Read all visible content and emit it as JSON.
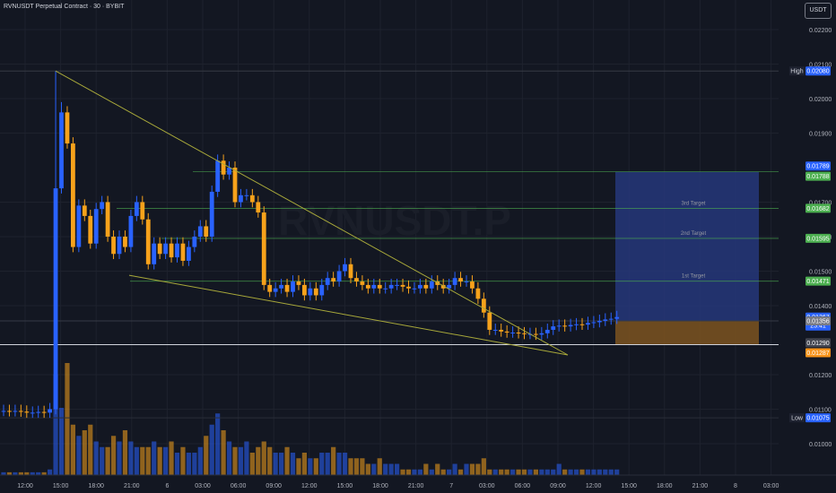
{
  "header": {
    "symbol_title": "RVNUSDT Perpetual Contract · 30 · BYBIT",
    "currency_button": "USDT"
  },
  "watermark": "RVNUSDT.P",
  "price_axis": {
    "ticks": [
      "0.02200",
      "0.02100",
      "0.02000",
      "0.01900",
      "0.01700",
      "0.01600",
      "0.01500",
      "0.01400",
      "0.01200",
      "0.01100",
      "0.01000"
    ],
    "badges": [
      {
        "label": "High",
        "value": "0.02080",
        "color": "#2962ff"
      },
      {
        "value": "0.01789",
        "color": "#2962ff"
      },
      {
        "value": "0.01788",
        "color": "#4caf50"
      },
      {
        "value": "0.01682",
        "color": "#4caf50"
      },
      {
        "value": "0.01595",
        "color": "#4caf50"
      },
      {
        "value": "0.01471",
        "color": "#4caf50"
      },
      {
        "value": "0.01367",
        "sub": "23:41",
        "color": "#2962ff"
      },
      {
        "value": "0.01356",
        "color": "#787b86"
      },
      {
        "value": "0.01290",
        "color": "#434651"
      },
      {
        "value": "0.01287",
        "color": "#f7931a"
      },
      {
        "label": "Low",
        "value": "0.01075",
        "color": "#2962ff"
      }
    ]
  },
  "time_axis": {
    "ticks": [
      "12:00",
      "15:00",
      "18:00",
      "21:00",
      "6",
      "03:00",
      "06:00",
      "09:00",
      "12:00",
      "15:00",
      "18:00",
      "21:00",
      "7",
      "03:00",
      "06:00",
      "09:00",
      "12:00",
      "15:00",
      "18:00",
      "21:00",
      "8",
      "03:00"
    ]
  },
  "targets": [
    "3rd Target",
    "2nd Target",
    "1st Target"
  ],
  "colors": {
    "up": "#2962ff",
    "down": "#f7a21b",
    "target_line": "#4caf50",
    "wedge": "#a8a83a",
    "profit_zone": "#26377a",
    "loss_zone": "#7d5420",
    "background": "#131722",
    "grid": "#1e222d",
    "axis_text": "#b2b5be"
  },
  "chart_data": {
    "type": "candlestick",
    "symbol": "RVNUSDT",
    "interval": "30",
    "exchange": "BYBIT",
    "session_high": 0.0208,
    "session_low": 0.01075,
    "last_price": 0.01367,
    "countdown": "23:41",
    "levels": {
      "target_3": 0.01682,
      "target_2": 0.01595,
      "target_1": 0.01471,
      "take_profit": 0.01788,
      "entry": 0.01356,
      "stop": 0.01287
    },
    "close_series": [
      0.01095,
      0.01094,
      0.01095,
      0.01093,
      0.0109,
      0.0109,
      0.01092,
      0.0109,
      0.011,
      0.0174,
      0.0196,
      0.0187,
      0.0157,
      0.0169,
      0.0166,
      0.0158,
      0.0168,
      0.017,
      0.016,
      0.0155,
      0.016,
      0.0157,
      0.0166,
      0.017,
      0.0165,
      0.0152,
      0.0158,
      0.0155,
      0.0158,
      0.0154,
      0.0158,
      0.0153,
      0.0157,
      0.016,
      0.0163,
      0.016,
      0.0173,
      0.0182,
      0.0178,
      0.018,
      0.017,
      0.0172,
      0.0172,
      0.017,
      0.0167,
      0.0146,
      0.0144,
      0.0145,
      0.0146,
      0.0144,
      0.0147,
      0.0146,
      0.0143,
      0.0145,
      0.0143,
      0.0146,
      0.0148,
      0.0147,
      0.015,
      0.0152,
      0.0148,
      0.0147,
      0.0146,
      0.0145,
      0.0146,
      0.0145,
      0.0145,
      0.0146,
      0.0146,
      0.01455,
      0.0145,
      0.0145,
      0.0146,
      0.0145,
      0.0147,
      0.0146,
      0.0145,
      0.0146,
      0.0148,
      0.0147,
      0.0147,
      0.0145,
      0.0142,
      0.0138,
      0.0133,
      0.0133,
      0.01325,
      0.01322,
      0.01322,
      0.0132,
      0.01318,
      0.01318,
      0.01316,
      0.0132,
      0.0133,
      0.0134,
      0.01342,
      0.0134,
      0.01344,
      0.01346,
      0.01345,
      0.0135,
      0.01352,
      0.01356,
      0.0136,
      0.01362,
      0.01367
    ],
    "volume_series": [
      0.5,
      0.5,
      0.5,
      0.5,
      0.5,
      0.5,
      0.5,
      0.5,
      1,
      18,
      12,
      20,
      9,
      7,
      8,
      9,
      6,
      5,
      5,
      7,
      6,
      8,
      6,
      5,
      5,
      5,
      6,
      5,
      5,
      6,
      4,
      5,
      4,
      4,
      5,
      7,
      9,
      11,
      8,
      6,
      5,
      5,
      6,
      4,
      5,
      6,
      5,
      4,
      4,
      5,
      4,
      3,
      4,
      3,
      3,
      4,
      4,
      5,
      4,
      4,
      3,
      3,
      3,
      2,
      2,
      3,
      2,
      2,
      2,
      1,
      1,
      1,
      1,
      2,
      1,
      2,
      1,
      1,
      2,
      1,
      2,
      2,
      2,
      3,
      1,
      1,
      1,
      1,
      1,
      1,
      1,
      1,
      1,
      1,
      1,
      1,
      2,
      1,
      1,
      1,
      1,
      1,
      1,
      1,
      1,
      1,
      1
    ],
    "yrange": [
      0.0093,
      0.0225
    ]
  }
}
